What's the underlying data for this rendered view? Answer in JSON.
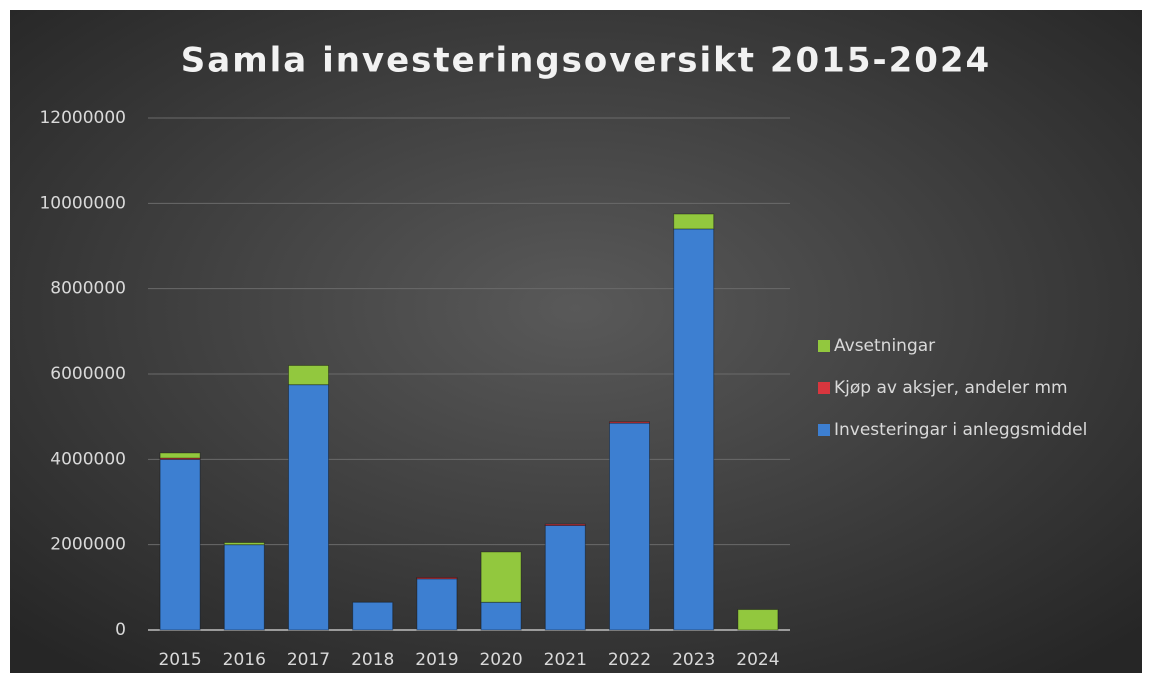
{
  "chart_data": {
    "type": "bar",
    "stacked": true,
    "title": "Samla investeringsoversikt 2015-2024",
    "categories": [
      "2015",
      "2016",
      "2017",
      "2018",
      "2019",
      "2020",
      "2021",
      "2022",
      "2023",
      "2024"
    ],
    "series": [
      {
        "name": "Investeringar i anleggsmiddel",
        "color": "#3d7fd1",
        "values": [
          4000000,
          2000000,
          5750000,
          650000,
          1200000,
          650000,
          2450000,
          4850000,
          9400000,
          0
        ]
      },
      {
        "name": "Kjøp av aksjer, andeler mm",
        "color": "#d9363e",
        "values": [
          30000,
          0,
          0,
          0,
          30000,
          0,
          30000,
          30000,
          0,
          0
        ]
      },
      {
        "name": "Avsetningar",
        "color": "#92c83e",
        "values": [
          120000,
          50000,
          450000,
          0,
          0,
          1180000,
          0,
          0,
          350000,
          480000
        ]
      }
    ],
    "ylim": [
      0,
      12000000
    ],
    "yticks": [
      0,
      2000000,
      4000000,
      6000000,
      8000000,
      10000000,
      12000000
    ],
    "grid": true,
    "legend": "right"
  }
}
